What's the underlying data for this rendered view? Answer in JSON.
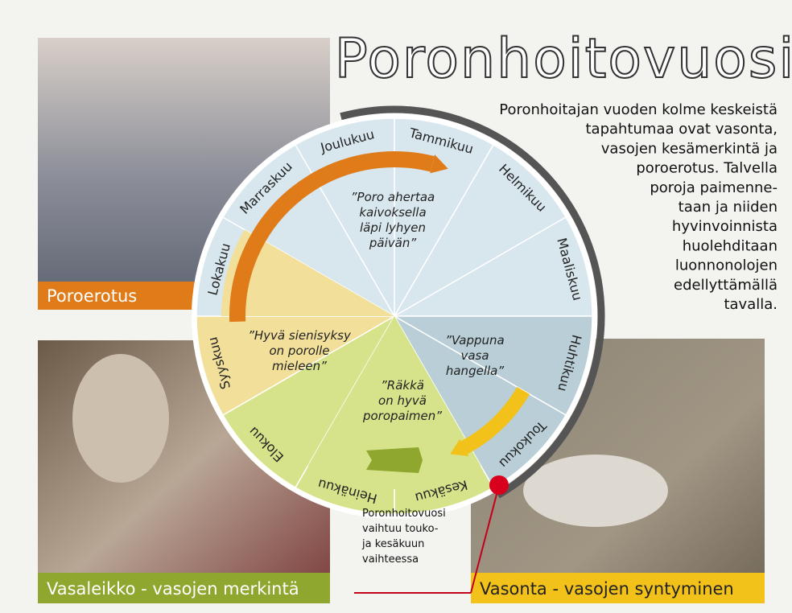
{
  "title": "Poronhoitovuosi",
  "intro": [
    "Poronhoitajan vuoden kolme keskeistä",
    "tapahtumaa ovat vasonta,",
    "vasojen kesämerkintä ja",
    "poroerotus. Talvella",
    "poroja paimenne-",
    "taan ja niiden",
    "hyvinvoinnista",
    "huolehditaan",
    "luonnonolojen",
    "edellyttämällä",
    "tavalla."
  ],
  "photos": {
    "top_left": "Poroerotus",
    "bottom_left": "Vasaleikko - vasojen merkintä",
    "bottom_right": "Vasonta - vasojen syntyminen"
  },
  "months": [
    "Tammikuu",
    "Helmikuu",
    "Maaliskuu",
    "Huhtikuu",
    "Toukokuu",
    "Kesäkuu",
    "Heinäkuu",
    "Elokuu",
    "Syyskuu",
    "Lokakuu",
    "Marraskuu",
    "Joulukuu"
  ],
  "quotes": {
    "winter": [
      "”Poro ahertaa",
      "kaivoksella",
      "läpi lyhyen",
      "päivän”"
    ],
    "autumn": [
      "”Hyvä sienisyksy",
      "on porolle",
      "mieleen”"
    ],
    "spring": [
      "”Vappuna",
      "vasa",
      "hangella”"
    ],
    "summer": [
      "”Räkkä",
      "on hyvä",
      "poropaimen”"
    ]
  },
  "note": [
    "Poronhoitovuosi",
    "vaihtuu touko-",
    "ja kesäkuun",
    "vaihteessa"
  ]
}
